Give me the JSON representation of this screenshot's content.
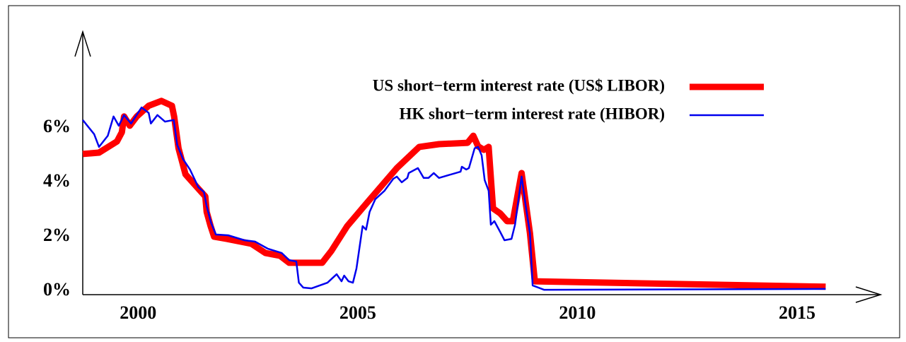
{
  "chart_data": {
    "type": "line",
    "xlim": [
      1998.74,
      2016.9
    ],
    "ylim": [
      -0.13,
      9.53
    ],
    "xticks": [
      2000,
      2005,
      2010,
      2015
    ],
    "yticks": [
      {
        "value": 0,
        "label": "0%"
      },
      {
        "value": 2,
        "label": "2%"
      },
      {
        "value": 4,
        "label": "4%"
      },
      {
        "value": 6,
        "label": "6%"
      }
    ],
    "legend": "upper right",
    "series": [
      {
        "name": "US short−term interest rate (US$ LIBOR)",
        "color": "#ff0000",
        "width": 9,
        "x": [
          1998.74,
          1999.11,
          1999.52,
          1999.63,
          1999.68,
          1999.81,
          1999.97,
          2000.24,
          2000.53,
          2000.77,
          2000.82,
          2000.92,
          2001.08,
          2001.34,
          2001.53,
          2001.56,
          2001.65,
          2001.73,
          2002.02,
          2002.58,
          2002.9,
          2003.23,
          2003.44,
          2004.19,
          2004.4,
          2004.76,
          2005.24,
          2005.89,
          2006.4,
          2006.85,
          2007.5,
          2007.63,
          2007.74,
          2007.87,
          2007.98,
          2008.08,
          2008.24,
          2008.4,
          2008.53,
          2008.73,
          2008.92,
          2009.03,
          2015.65
        ],
        "values": [
          5.04,
          5.09,
          5.5,
          5.84,
          6.42,
          6.08,
          6.42,
          6.81,
          6.99,
          6.81,
          6.42,
          5.25,
          4.29,
          3.82,
          3.48,
          2.91,
          2.39,
          2.0,
          1.92,
          1.74,
          1.4,
          1.3,
          1.04,
          1.04,
          1.48,
          2.39,
          3.3,
          4.52,
          5.3,
          5.4,
          5.45,
          5.71,
          5.32,
          5.19,
          5.3,
          3.04,
          2.86,
          2.57,
          2.57,
          4.34,
          2.13,
          0.36,
          0.16
        ]
      },
      {
        "name": "HK short−term interest rate (HIBOR)",
        "color": "#0000ee",
        "width": 2.5,
        "x": [
          1998.74,
          1999.0,
          1999.11,
          1999.31,
          1999.44,
          1999.56,
          1999.68,
          1999.84,
          2000.08,
          2000.24,
          2000.29,
          2000.44,
          2000.61,
          2000.81,
          2000.89,
          2001.02,
          2001.18,
          2001.37,
          2001.5,
          2001.56,
          2001.66,
          2001.77,
          2002.05,
          2002.42,
          2002.66,
          2002.95,
          2003.27,
          2003.44,
          2003.6,
          2003.66,
          2003.76,
          2003.95,
          2004.31,
          2004.52,
          2004.63,
          2004.69,
          2004.79,
          2004.89,
          2004.97,
          2005.11,
          2005.19,
          2005.27,
          2005.4,
          2005.61,
          2005.81,
          2005.89,
          2006.0,
          2006.13,
          2006.16,
          2006.37,
          2006.5,
          2006.61,
          2006.73,
          2006.85,
          2007.34,
          2007.37,
          2007.47,
          2007.53,
          2007.66,
          2007.74,
          2007.82,
          2007.89,
          2007.98,
          2008.03,
          2008.11,
          2008.24,
          2008.34,
          2008.5,
          2008.58,
          2008.73,
          2008.82,
          2008.92,
          2008.98,
          2009.24,
          2015.65
        ],
        "values": [
          6.29,
          5.77,
          5.3,
          5.71,
          6.42,
          6.08,
          6.47,
          6.16,
          6.75,
          6.55,
          6.16,
          6.47,
          6.23,
          6.29,
          5.38,
          4.86,
          4.47,
          3.82,
          3.64,
          3.12,
          2.52,
          2.08,
          2.05,
          1.87,
          1.82,
          1.56,
          1.4,
          1.14,
          1.09,
          0.31,
          0.13,
          0.1,
          0.31,
          0.62,
          0.36,
          0.57,
          0.36,
          0.31,
          0.83,
          2.39,
          2.26,
          2.91,
          3.38,
          3.69,
          4.13,
          4.21,
          4.0,
          4.16,
          4.34,
          4.52,
          4.16,
          4.16,
          4.34,
          4.16,
          4.39,
          4.57,
          4.47,
          4.52,
          5.25,
          5.3,
          4.99,
          4.08,
          3.69,
          2.44,
          2.57,
          2.18,
          1.87,
          1.92,
          2.44,
          4.21,
          3.17,
          2.13,
          0.21,
          0.05,
          0.08
        ]
      }
    ]
  }
}
